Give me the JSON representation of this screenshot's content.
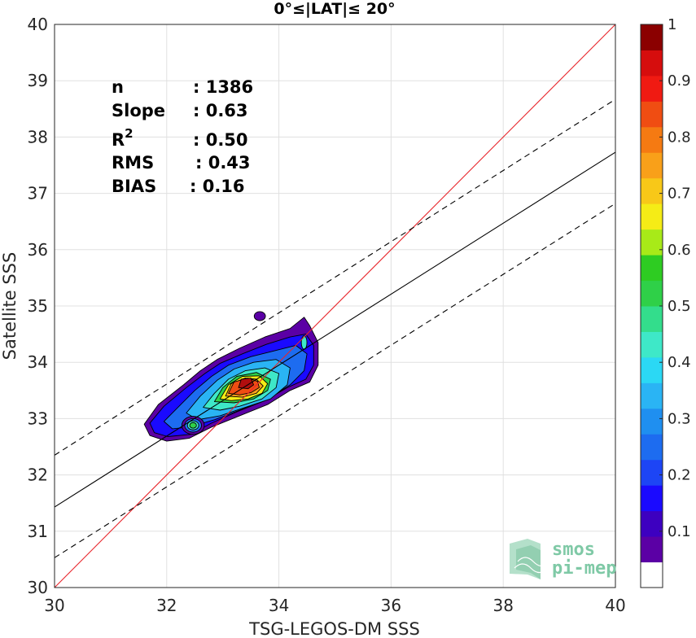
{
  "chart_data": {
    "type": "scatter",
    "title": "0°≤|LAT|≤ 20°",
    "xlabel": "TSG-LEGOS-DM SSS",
    "ylabel": "Satellite SSS",
    "xlim": [
      30,
      40
    ],
    "ylim": [
      30,
      40
    ],
    "xticks": [
      "30",
      "32",
      "34",
      "36",
      "38",
      "40"
    ],
    "yticks": [
      "30",
      "31",
      "32",
      "33",
      "34",
      "35",
      "36",
      "37",
      "38",
      "39",
      "40"
    ],
    "grid": true,
    "stats": [
      {
        "key": "n",
        "value": ": 1386"
      },
      {
        "key": "Slope",
        "value": ": 0.63"
      },
      {
        "key": "R",
        "sup": "2",
        "value": ": 0.50"
      },
      {
        "key": "RMS",
        "value": ": 0.43"
      },
      {
        "key": "BIAS",
        "value": ": 0.16"
      }
    ],
    "lines": {
      "identity": {
        "color": "#e8252b",
        "x": [
          30,
          40
        ],
        "y": [
          30,
          40
        ]
      },
      "regression": {
        "color": "#000000",
        "x": [
          30,
          40
        ],
        "y": [
          31.43,
          37.73
        ]
      },
      "upper_band": {
        "color": "#000000",
        "dashed": true,
        "x": [
          30,
          40
        ],
        "y": [
          32.35,
          38.67
        ]
      },
      "lower_band": {
        "color": "#000000",
        "dashed": true,
        "x": [
          30,
          40
        ],
        "y": [
          30.53,
          36.82
        ]
      }
    },
    "density_contours": [
      {
        "level": 0.05,
        "color": "#5b00a5",
        "ring": [
          [
            31.6,
            32.9
          ],
          [
            31.85,
            33.25
          ],
          [
            32.3,
            33.6
          ],
          [
            32.6,
            33.85
          ],
          [
            32.9,
            34.05
          ],
          [
            33.3,
            34.25
          ],
          [
            33.75,
            34.45
          ],
          [
            34.2,
            34.6
          ],
          [
            34.45,
            34.8
          ],
          [
            34.55,
            34.65
          ],
          [
            34.7,
            34.35
          ],
          [
            34.7,
            33.95
          ],
          [
            34.55,
            33.65
          ],
          [
            34.2,
            33.5
          ],
          [
            33.8,
            33.25
          ],
          [
            33.3,
            33.05
          ],
          [
            32.8,
            32.85
          ],
          [
            32.4,
            32.65
          ],
          [
            32.0,
            32.6
          ],
          [
            31.7,
            32.7
          ]
        ]
      },
      {
        "level": 0.15,
        "color": "#1a0aff",
        "ring": [
          [
            31.7,
            32.92
          ],
          [
            31.95,
            33.22
          ],
          [
            32.35,
            33.55
          ],
          [
            32.68,
            33.8
          ],
          [
            32.95,
            33.98
          ],
          [
            33.35,
            34.15
          ],
          [
            33.78,
            34.32
          ],
          [
            34.2,
            34.45
          ],
          [
            34.48,
            34.5
          ],
          [
            34.62,
            34.3
          ],
          [
            34.62,
            33.95
          ],
          [
            34.48,
            33.7
          ],
          [
            34.15,
            33.55
          ],
          [
            33.75,
            33.32
          ],
          [
            33.25,
            33.12
          ],
          [
            32.8,
            32.92
          ],
          [
            32.42,
            32.72
          ],
          [
            32.02,
            32.68
          ],
          [
            31.78,
            32.75
          ]
        ]
      },
      {
        "level": 0.25,
        "color": "#1d6cf0",
        "ring": [
          [
            31.95,
            32.95
          ],
          [
            32.2,
            33.2
          ],
          [
            32.5,
            33.5
          ],
          [
            32.8,
            33.75
          ],
          [
            33.1,
            33.95
          ],
          [
            33.5,
            34.1
          ],
          [
            33.9,
            34.2
          ],
          [
            34.3,
            34.3
          ],
          [
            34.5,
            34.15
          ],
          [
            34.45,
            33.85
          ],
          [
            34.2,
            33.6
          ],
          [
            33.8,
            33.35
          ],
          [
            33.3,
            33.15
          ],
          [
            32.85,
            32.98
          ],
          [
            32.4,
            32.85
          ],
          [
            32.1,
            32.82
          ]
        ]
      },
      {
        "level": 0.35,
        "color": "#2ab4f4",
        "ring": [
          [
            32.35,
            33.1
          ],
          [
            32.6,
            33.4
          ],
          [
            32.9,
            33.68
          ],
          [
            33.2,
            33.88
          ],
          [
            33.55,
            34.0
          ],
          [
            33.95,
            34.05
          ],
          [
            34.2,
            33.9
          ],
          [
            34.15,
            33.6
          ],
          [
            33.85,
            33.35
          ],
          [
            33.4,
            33.2
          ],
          [
            32.95,
            33.05
          ],
          [
            32.55,
            32.98
          ]
        ]
      },
      {
        "level": 0.45,
        "color": "#3ee8c8",
        "ring": [
          [
            32.65,
            33.2
          ],
          [
            32.85,
            33.45
          ],
          [
            33.1,
            33.7
          ],
          [
            33.4,
            33.85
          ],
          [
            33.75,
            33.9
          ],
          [
            34.0,
            33.8
          ],
          [
            33.95,
            33.55
          ],
          [
            33.7,
            33.35
          ],
          [
            33.3,
            33.22
          ],
          [
            32.95,
            33.15
          ]
        ]
      },
      {
        "level": 0.55,
        "color": "#2fd048",
        "ring": [
          [
            32.85,
            33.3
          ],
          [
            33.0,
            33.55
          ],
          [
            33.25,
            33.75
          ],
          [
            33.6,
            33.82
          ],
          [
            33.85,
            33.7
          ],
          [
            33.8,
            33.5
          ],
          [
            33.55,
            33.35
          ],
          [
            33.2,
            33.28
          ]
        ]
      },
      {
        "level": 0.65,
        "color": "#f5ec16",
        "ring": [
          [
            32.95,
            33.35
          ],
          [
            33.1,
            33.6
          ],
          [
            33.35,
            33.75
          ],
          [
            33.65,
            33.76
          ],
          [
            33.8,
            33.62
          ],
          [
            33.7,
            33.45
          ],
          [
            33.45,
            33.35
          ],
          [
            33.15,
            33.32
          ]
        ]
      },
      {
        "level": 0.75,
        "color": "#f9a019",
        "ring": [
          [
            33.05,
            33.4
          ],
          [
            33.15,
            33.62
          ],
          [
            33.4,
            33.72
          ],
          [
            33.6,
            33.7
          ],
          [
            33.72,
            33.58
          ],
          [
            33.6,
            33.45
          ],
          [
            33.35,
            33.38
          ]
        ]
      },
      {
        "level": 0.85,
        "color": "#f04d12",
        "ring": [
          [
            33.1,
            33.45
          ],
          [
            33.2,
            33.65
          ],
          [
            33.45,
            33.72
          ],
          [
            33.62,
            33.66
          ],
          [
            33.65,
            33.55
          ],
          [
            33.5,
            33.46
          ],
          [
            33.3,
            33.42
          ]
        ]
      },
      {
        "level": 0.95,
        "color": "#b10e0e",
        "ring": [
          [
            33.28,
            33.55
          ],
          [
            33.33,
            33.7
          ],
          [
            33.5,
            33.72
          ],
          [
            33.55,
            33.6
          ],
          [
            33.45,
            33.53
          ]
        ]
      }
    ],
    "secondary_blobs": [
      {
        "color": "#5b00a5",
        "cx": 32.47,
        "cy": 32.88,
        "rx": 0.2,
        "ry": 0.16
      },
      {
        "color": "#1d6cf0",
        "cx": 32.47,
        "cy": 32.88,
        "rx": 0.15,
        "ry": 0.12
      },
      {
        "color": "#3ee8c8",
        "cx": 32.47,
        "cy": 32.88,
        "rx": 0.1,
        "ry": 0.08
      },
      {
        "color": "#2fd048",
        "cx": 32.47,
        "cy": 32.88,
        "rx": 0.06,
        "ry": 0.05
      },
      {
        "color": "#5b00a5",
        "cx": 33.66,
        "cy": 34.82,
        "rx": 0.1,
        "ry": 0.08
      },
      {
        "color": "#3ee8c8",
        "cx": 34.45,
        "cy": 34.35,
        "rx": 0.05,
        "ry": 0.12
      }
    ],
    "colorbar": {
      "min": 0,
      "max": 1,
      "ticks": [
        "0.1",
        "0.2",
        "0.3",
        "0.4",
        "0.5",
        "0.6",
        "0.7",
        "0.8",
        "0.9",
        "1"
      ],
      "colors": [
        "#ffffff",
        "#5b00a5",
        "#3d00c0",
        "#1a0aff",
        "#1d45f5",
        "#1d6cf0",
        "#1f8ff0",
        "#2ab4f4",
        "#2bd8f4",
        "#3ee8c8",
        "#33dd8c",
        "#2fd048",
        "#2ecc22",
        "#a8ea18",
        "#f5ec16",
        "#f8c818",
        "#f9a019",
        "#f57a12",
        "#f04d12",
        "#f01a12",
        "#d60d0d",
        "#8b0000"
      ]
    }
  },
  "watermark": {
    "line1": "smos",
    "line2": "pi-mep",
    "color": "#7fc9a6"
  }
}
